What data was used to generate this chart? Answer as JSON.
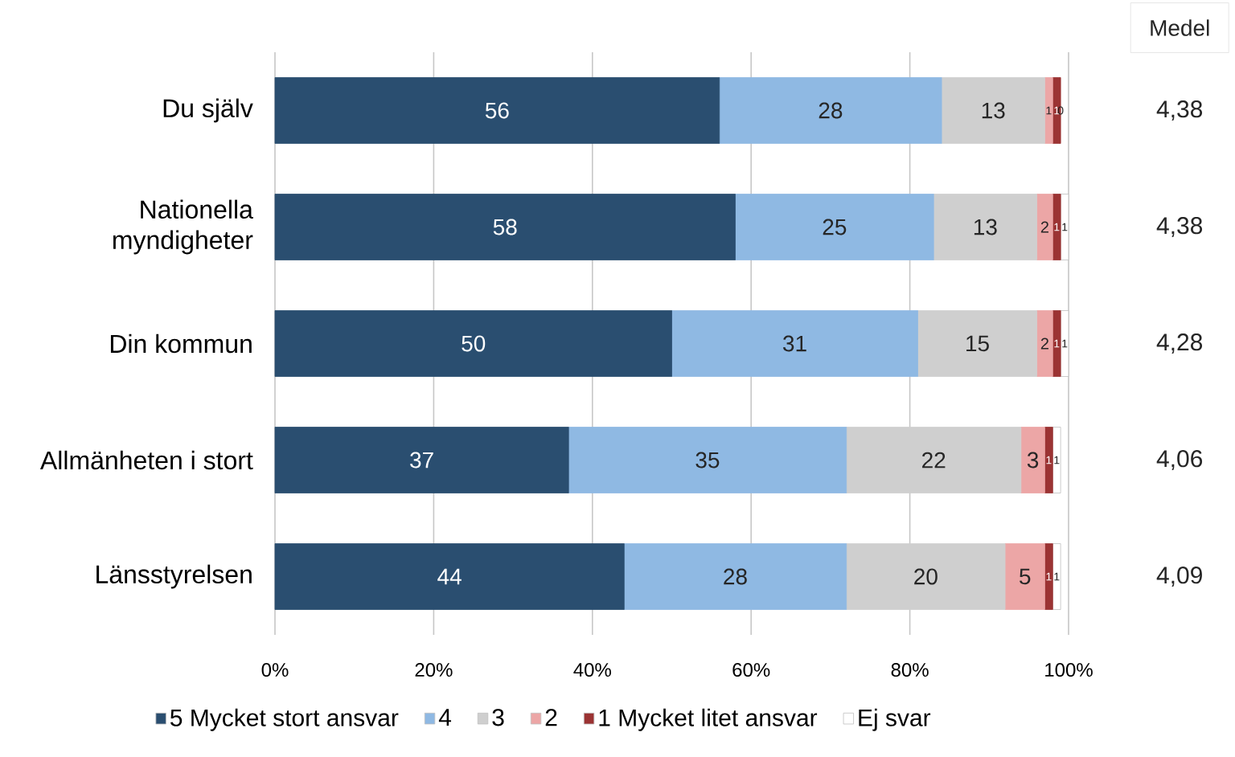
{
  "chart_data": {
    "type": "bar",
    "orientation": "horizontal",
    "stacked": true,
    "categories": [
      "Du själv",
      "Nationella myndigheter",
      "Din kommun",
      "Allmänheten i stort",
      "Länsstyrelsen"
    ],
    "series": [
      {
        "name": "5 Mycket stort ansvar",
        "color": "#2a4e70",
        "values": [
          56,
          58,
          50,
          37,
          44
        ],
        "value_labels": [
          "56",
          "58",
          "50",
          "37",
          "44"
        ]
      },
      {
        "name": "4",
        "color": "#8fb9e3",
        "values": [
          28,
          25,
          31,
          35,
          28
        ],
        "value_labels": [
          "28",
          "25",
          "31",
          "35",
          "28"
        ]
      },
      {
        "name": "3",
        "color": "#cfcfcf",
        "values": [
          13,
          13,
          15,
          22,
          20
        ],
        "value_labels": [
          "13",
          "13",
          "15",
          "22",
          "20"
        ]
      },
      {
        "name": "2",
        "color": "#eca6a6",
        "values": [
          1,
          2,
          2,
          3,
          5
        ],
        "value_labels": [
          "1",
          "2",
          "2",
          "3",
          "5"
        ]
      },
      {
        "name": "1 Mycket litet ansvar",
        "color": "#9b3333",
        "values": [
          1,
          1,
          1,
          1,
          1
        ],
        "value_labels": [
          "1",
          "1",
          "1",
          "1",
          "1"
        ]
      },
      {
        "name": "Ej svar",
        "color": "#ffffff",
        "values": [
          0,
          1,
          1,
          1,
          1
        ],
        "value_labels": [
          "0",
          "1",
          "1",
          "1",
          "1"
        ]
      }
    ],
    "xlim": [
      0,
      100
    ],
    "xticks": [
      {
        "value": 0,
        "label": "0%"
      },
      {
        "value": 20,
        "label": "20%"
      },
      {
        "value": 40,
        "label": "40%"
      },
      {
        "value": 60,
        "label": "60%"
      },
      {
        "value": 80,
        "label": "80%"
      },
      {
        "value": 100,
        "label": "100%"
      }
    ],
    "grid": "x",
    "legend": "bottom",
    "annotations": [
      "Medel",
      "4,38",
      "4,38",
      "4,28",
      "4,06",
      "4,09"
    ]
  }
}
